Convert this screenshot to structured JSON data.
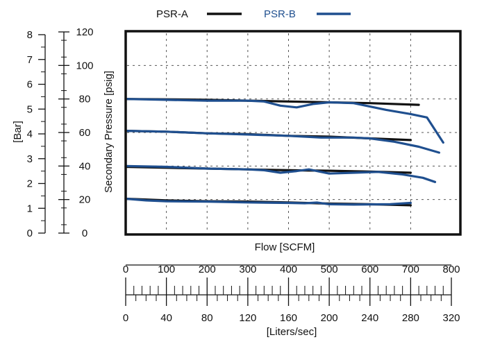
{
  "chart_data": {
    "type": "line",
    "title": "",
    "xlabel": "Flow [SCFM]",
    "x2label": "[Liters/sec]",
    "ylabel": "Secondary Pressure [psig]",
    "y2label": "[Bar]",
    "xlim": [
      0,
      800
    ],
    "ylim": [
      0,
      120
    ],
    "grid": true,
    "legend": "top",
    "x_ticks": [
      "0",
      "100",
      "200",
      "300",
      "400",
      "500",
      "600",
      "700",
      "800"
    ],
    "x2_ticks": [
      "0",
      "40",
      "80",
      "120",
      "160",
      "200",
      "240",
      "280",
      "320"
    ],
    "y_ticks": [
      "0",
      "20",
      "40",
      "60",
      "80",
      "100",
      "120"
    ],
    "y2_ticks": [
      "0",
      "1",
      "2",
      "3",
      "4",
      "5",
      "6",
      "7",
      "8"
    ],
    "colors": {
      "PSR-A": "#111111",
      "PSR-B": "#1f4f8f"
    },
    "series": [
      {
        "name": "PSR-A",
        "curves": [
          [
            [
              0,
              20.5
            ],
            [
              100,
              19.5
            ],
            [
              200,
              19
            ],
            [
              300,
              18.8
            ],
            [
              400,
              18.3
            ],
            [
              500,
              17.6
            ],
            [
              600,
              17.2
            ],
            [
              700,
              16.6
            ]
          ],
          [
            [
              0,
              39.5
            ],
            [
              100,
              39
            ],
            [
              200,
              38.5
            ],
            [
              300,
              38
            ],
            [
              400,
              37.5
            ],
            [
              500,
              37.2
            ],
            [
              600,
              36.7
            ],
            [
              700,
              36
            ]
          ],
          [
            [
              0,
              61
            ],
            [
              100,
              60.5
            ],
            [
              200,
              59.5
            ],
            [
              300,
              59
            ],
            [
              400,
              58
            ],
            [
              500,
              57.5
            ],
            [
              600,
              56.5
            ],
            [
              700,
              55.5
            ]
          ],
          [
            [
              0,
              80
            ],
            [
              100,
              79.8
            ],
            [
              200,
              79.5
            ],
            [
              300,
              79
            ],
            [
              400,
              78.5
            ],
            [
              500,
              78
            ],
            [
              600,
              77.5
            ],
            [
              720,
              76.5
            ]
          ]
        ]
      },
      {
        "name": "PSR-B",
        "curves": [
          [
            [
              0,
              20.5
            ],
            [
              50,
              19.5
            ],
            [
              100,
              19
            ],
            [
              200,
              18.8
            ],
            [
              300,
              18.3
            ],
            [
              400,
              18
            ],
            [
              440,
              17.8
            ],
            [
              470,
              18.2
            ],
            [
              500,
              17.2
            ],
            [
              560,
              17
            ],
            [
              650,
              17.2
            ],
            [
              700,
              18
            ]
          ],
          [
            [
              0,
              40
            ],
            [
              100,
              39.5
            ],
            [
              200,
              38.5
            ],
            [
              300,
              38
            ],
            [
              340,
              37.5
            ],
            [
              380,
              36
            ],
            [
              420,
              37
            ],
            [
              450,
              38
            ],
            [
              500,
              35.5
            ],
            [
              560,
              36
            ],
            [
              620,
              36.5
            ],
            [
              680,
              35
            ],
            [
              730,
              33
            ],
            [
              760,
              30.5
            ]
          ],
          [
            [
              0,
              61
            ],
            [
              100,
              60.5
            ],
            [
              200,
              59.5
            ],
            [
              300,
              58.8
            ],
            [
              400,
              58
            ],
            [
              480,
              57
            ],
            [
              560,
              57
            ],
            [
              600,
              56.5
            ],
            [
              660,
              54.5
            ],
            [
              720,
              51.5
            ],
            [
              770,
              48
            ]
          ],
          [
            [
              0,
              80
            ],
            [
              100,
              79.5
            ],
            [
              200,
              79
            ],
            [
              300,
              79
            ],
            [
              340,
              78.5
            ],
            [
              380,
              76
            ],
            [
              420,
              75
            ],
            [
              460,
              77
            ],
            [
              500,
              78
            ],
            [
              560,
              77.5
            ],
            [
              640,
              73.5
            ],
            [
              700,
              71
            ],
            [
              740,
              69
            ],
            [
              780,
              54
            ]
          ]
        ]
      }
    ]
  }
}
